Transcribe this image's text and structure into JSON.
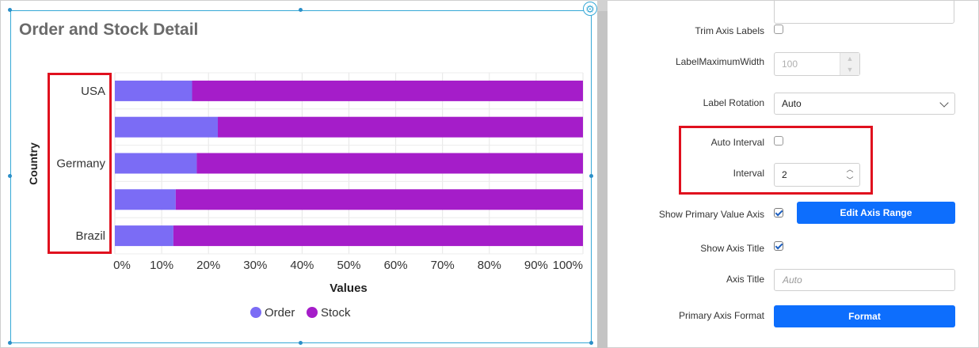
{
  "chart_data": {
    "type": "bar",
    "orientation": "horizontal",
    "stacking": "100%",
    "title": "Order and Stock Detail",
    "xlabel": "Values",
    "ylabel": "Country",
    "categories": [
      "USA",
      "",
      "Germany",
      "",
      "Brazil"
    ],
    "series": [
      {
        "name": "Order",
        "color": "#7b6cf5",
        "values": [
          16.5,
          22,
          17.5,
          13,
          12.5
        ]
      },
      {
        "name": "Stock",
        "color": "#a51dc9",
        "values": [
          83.5,
          78,
          82.5,
          87,
          87.5
        ]
      }
    ],
    "xticks": [
      "0%",
      "10%",
      "20%",
      "30%",
      "40%",
      "50%",
      "60%",
      "70%",
      "80%",
      "90%",
      "100%"
    ],
    "xlim": [
      0,
      100
    ],
    "legend": "bottom-center",
    "grid": true
  },
  "chart": {
    "title": "Order and Stock Detail",
    "axis_title_y": "Country",
    "axis_title_x": "Values",
    "legend": [
      "Order",
      "Stock"
    ]
  },
  "panel": {
    "trim_axis_labels": {
      "label": "Trim Axis Labels",
      "checked": false
    },
    "label_max_width": {
      "label": "LabelMaximumWidth",
      "value": "100"
    },
    "label_rotation": {
      "label": "Label Rotation",
      "value": "Auto"
    },
    "auto_interval": {
      "label": "Auto Interval",
      "checked": false
    },
    "interval": {
      "label": "Interval",
      "value": "2"
    },
    "show_primary_value_axis": {
      "label": "Show Primary Value Axis",
      "checked": true,
      "button": "Edit Axis Range"
    },
    "show_axis_title": {
      "label": "Show Axis Title",
      "checked": true
    },
    "axis_title": {
      "label": "Axis Title",
      "placeholder": "Auto"
    },
    "primary_axis_format": {
      "label": "Primary Axis Format",
      "button": "Format"
    }
  },
  "colors": {
    "accent_button": "#0d6efd",
    "highlight_box": "#e0101e",
    "selection_border": "#35a8d6"
  }
}
